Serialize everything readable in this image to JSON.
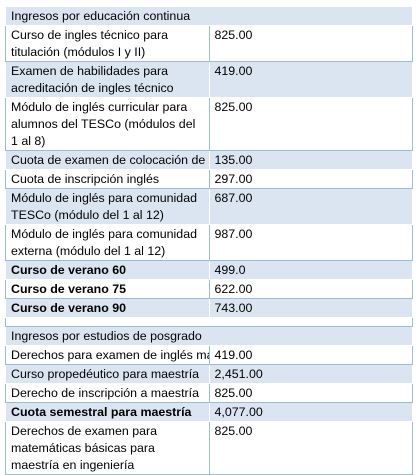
{
  "sections": [
    {
      "title": "Ingresos por educación continua",
      "rows": [
        {
          "concept": "Curso de ingles técnico para titulación (módulos I y II)",
          "amount": "825.00"
        },
        {
          "concept": "Examen de habilidades para acreditación de ingles técnico",
          "amount": "419.00"
        },
        {
          "concept": "Módulo de inglés curricular para alumnos del TESCo (módulos del 1 al 8)",
          "amount": "825.00"
        },
        {
          "concept": "Cuota de examen de colocación de inglés",
          "amount": "135.00"
        },
        {
          "concept": "Cuota de inscripción inglés",
          "amount": "297.00"
        },
        {
          "concept": "Módulo de inglés para comunidad TESCo (módulo del 1 al 12)",
          "amount": "687.00"
        },
        {
          "concept": "Módulo de inglés para comunidad externa (módulo del 1 al 12)",
          "amount": "987.00"
        },
        {
          "concept": "Curso de verano 60",
          "amount": "499.0"
        },
        {
          "concept": "Curso de verano 75",
          "amount": "622.00"
        },
        {
          "concept": "Curso de verano 90",
          "amount": "743.00"
        }
      ]
    },
    {
      "title": "Ingresos por estudios de posgrado",
      "rows": [
        {
          "concept": "Derechos para examen de inglés maestría",
          "amount": "419.00"
        },
        {
          "concept": "Curso propedéutico para maestría",
          "amount": "2,451.00"
        },
        {
          "concept": "Derecho de inscripción a maestría",
          "amount": "825.00"
        },
        {
          "concept": "Cuota semestral para maestría",
          "amount": "4,077.00"
        },
        {
          "concept": "Derechos de examen para matemáticas básicas para maestría en ingeniería",
          "amount": "825.00"
        }
      ]
    }
  ],
  "colors": {
    "band": "#dbe5f1",
    "border": "#9bbbd9",
    "text": "#000000"
  }
}
